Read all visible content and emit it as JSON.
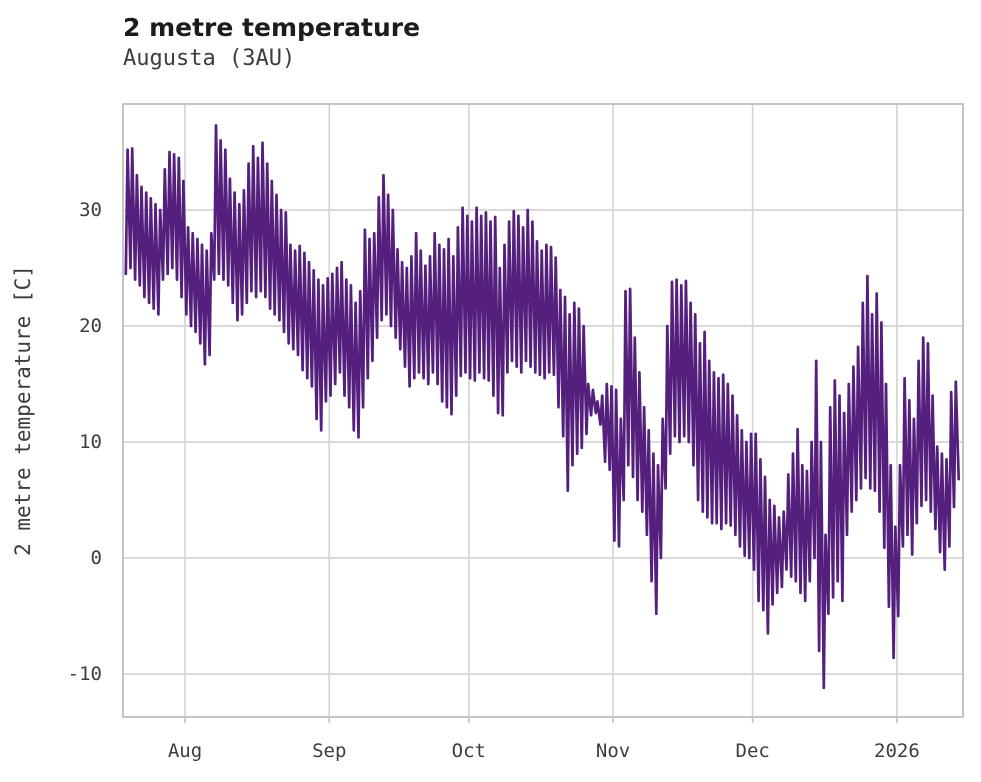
{
  "header": {
    "title": "2 metre temperature",
    "subtitle": "Augusta (3AU)"
  },
  "chart_data": {
    "type": "line",
    "title": "2 metre temperature",
    "subtitle": "Augusta (3AU)",
    "xlabel": "",
    "ylabel": "2 metre temperature [C]",
    "grid": true,
    "legend_position": "none",
    "line_color": "#55207d",
    "grid_color": "#d5d5d5",
    "border_color": "#c4c4c4",
    "tick_label_color": "#3d3d3d",
    "ylim": [
      -13.7,
      39.1
    ],
    "yticks": [
      30,
      20,
      10,
      0,
      -10
    ],
    "xticks": [
      {
        "label": "Aug",
        "day": 0
      },
      {
        "label": "Sep",
        "day": 31
      },
      {
        "label": "Oct",
        "day": 61
      },
      {
        "label": "Nov",
        "day": 92
      },
      {
        "label": "Dec",
        "day": 122
      },
      {
        "label": "2026",
        "day": 153
      }
    ],
    "x_range_days": [
      -13.3,
      167.3
    ],
    "series": [
      {
        "name": "2 metre temperature",
        "first_day_offset": -13,
        "daily_min": [
          24.5,
          25,
          24,
          23.5,
          22.5,
          22,
          21.5,
          21,
          24,
          24.5,
          25,
          24,
          22.5,
          21,
          20,
          19.5,
          18.5,
          16.7,
          17.5,
          24,
          24.5,
          24,
          23.5,
          22,
          20.5,
          21,
          22,
          23,
          22.5,
          23,
          22.5,
          21.5,
          21,
          20.5,
          19.5,
          18.5,
          18,
          17.5,
          16.2,
          15.5,
          14.8,
          12,
          11,
          13.5,
          14,
          15,
          16,
          14,
          13,
          11,
          10.4,
          13,
          15.5,
          17,
          19,
          20.5,
          21,
          20,
          19,
          18,
          16.5,
          14.8,
          15.5,
          16,
          15.5,
          15,
          16,
          15,
          13.5,
          13,
          12.4,
          14,
          15.7,
          16,
          15.5,
          15.3,
          16,
          15.5,
          15.3,
          14,
          12.5,
          12.3,
          16,
          17,
          16.5,
          16,
          17,
          16.5,
          16,
          15.8,
          15.5,
          16,
          15.8,
          13,
          10.5,
          5.8,
          8,
          9,
          9.5,
          10.7,
          12.3,
          12.5,
          11.5,
          8.3,
          7.6,
          1.5,
          1,
          5,
          8,
          7,
          5,
          4,
          2,
          -2,
          -4.8,
          0,
          6,
          9,
          10.5,
          10,
          10.5,
          10,
          8,
          5,
          4,
          3.5,
          3,
          3,
          2.5,
          3,
          2.8,
          2,
          1,
          0.2,
          0,
          -1,
          -3.7,
          -4.5,
          -6.5,
          -4,
          -3,
          -2.5,
          -1,
          -1.6,
          -2,
          -3,
          -3.7,
          -2,
          0,
          -8,
          -11.2,
          -4.8,
          -3.4,
          -2,
          -3.7,
          2,
          4,
          5,
          6,
          6.9,
          6,
          5.8,
          4,
          0.9,
          -4.2,
          -8.6,
          -5,
          1,
          2,
          0.3,
          3,
          4.5,
          5,
          4,
          2.5,
          0.5,
          -1,
          1,
          4.4,
          6.8
        ],
        "daily_max": [
          35.2,
          35.3,
          33,
          32,
          31.5,
          31,
          30.5,
          30,
          33.5,
          35,
          34.8,
          34.5,
          32.5,
          28.5,
          28,
          27.5,
          27,
          26.5,
          28,
          37.3,
          36,
          35.2,
          32.7,
          31.5,
          30.5,
          31.7,
          34,
          35.5,
          34.5,
          35.8,
          34,
          32.5,
          31.3,
          30,
          29.8,
          27,
          26.5,
          26.9,
          26.3,
          25.5,
          24.8,
          24,
          23.5,
          24.1,
          24.5,
          25,
          25.5,
          24,
          23.5,
          22,
          23,
          28.3,
          27.5,
          28,
          31.1,
          33,
          31.3,
          30,
          26.6,
          25.5,
          25,
          26,
          28,
          26.5,
          25.2,
          26,
          28,
          27,
          26.6,
          27.5,
          26,
          28.5,
          30.2,
          29.5,
          29,
          30.2,
          29.5,
          29.8,
          29,
          29.4,
          25,
          27,
          29,
          29.9,
          29.5,
          28.5,
          30,
          29,
          27.3,
          26.5,
          27,
          26.8,
          25.9,
          23.1,
          22.5,
          21,
          22,
          21.5,
          20,
          15,
          14.5,
          13.5,
          14,
          15,
          14.8,
          14.5,
          12,
          23,
          23.2,
          19,
          16,
          13,
          11,
          9,
          8,
          12,
          20,
          23.8,
          24,
          23.5,
          23.9,
          22,
          21,
          18.5,
          19.5,
          17,
          16,
          15.5,
          15.8,
          15,
          14,
          12.3,
          11,
          10,
          10.7,
          10.7,
          8.5,
          7,
          5,
          4.5,
          3.5,
          4,
          7.2,
          9,
          11.1,
          8,
          7.5,
          10,
          17,
          10,
          2,
          13,
          15.3,
          14,
          12.5,
          15,
          16.5,
          18.2,
          22,
          24.3,
          21,
          22.8,
          20.3,
          15,
          8,
          2.7,
          8,
          15.5,
          13.6,
          12,
          17,
          19,
          18.5,
          14,
          9.6,
          9,
          8.5,
          14.3,
          15.2,
          null
        ]
      }
    ]
  }
}
